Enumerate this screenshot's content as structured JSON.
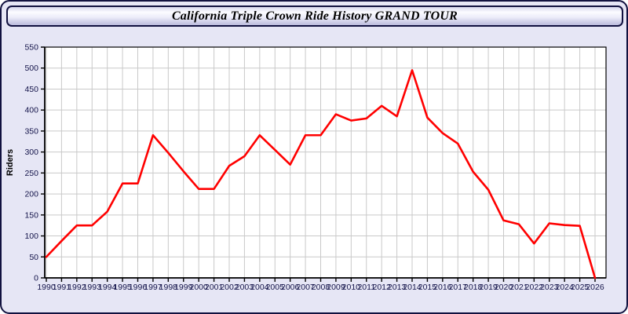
{
  "window": {
    "title": "California Triple Crown Ride History GRAND TOUR"
  },
  "chart_data": {
    "type": "line",
    "title": "California Triple Crown Ride History GRAND TOUR",
    "xlabel": "",
    "ylabel": "Riders",
    "x": [
      1990,
      1991,
      1992,
      1993,
      1994,
      1995,
      1996,
      1997,
      1998,
      1999,
      2000,
      2001,
      2002,
      2003,
      2004,
      2005,
      2006,
      2007,
      2008,
      2009,
      2010,
      2011,
      2012,
      2013,
      2014,
      2015,
      2016,
      2017,
      2018,
      2019,
      2020,
      2021,
      2022,
      2023,
      2024,
      2025,
      2026
    ],
    "series": [
      {
        "name": "Riders",
        "values": [
          50,
          88,
          125,
          125,
          158,
          225,
          225,
          340,
          298,
          254,
          212,
          212,
          267,
          290,
          340,
          305,
          270,
          340,
          340,
          390,
          375,
          380,
          410,
          385,
          495,
          382,
          345,
          320,
          253,
          210,
          137,
          128,
          82,
          130,
          126,
          124,
          0
        ]
      }
    ],
    "ylim": [
      0,
      550
    ],
    "yticks": [
      0,
      50,
      100,
      150,
      200,
      250,
      300,
      350,
      400,
      450,
      500,
      550
    ],
    "grid": true,
    "legend_position": "none"
  },
  "colors": {
    "line": "#ff0000",
    "grid": "#c9c9c9",
    "plot_background": "#ffffff",
    "panel_background": "#e6e6f5",
    "frame_border": "#11113f",
    "axis": "#000000",
    "tick_label": "#14144a"
  }
}
